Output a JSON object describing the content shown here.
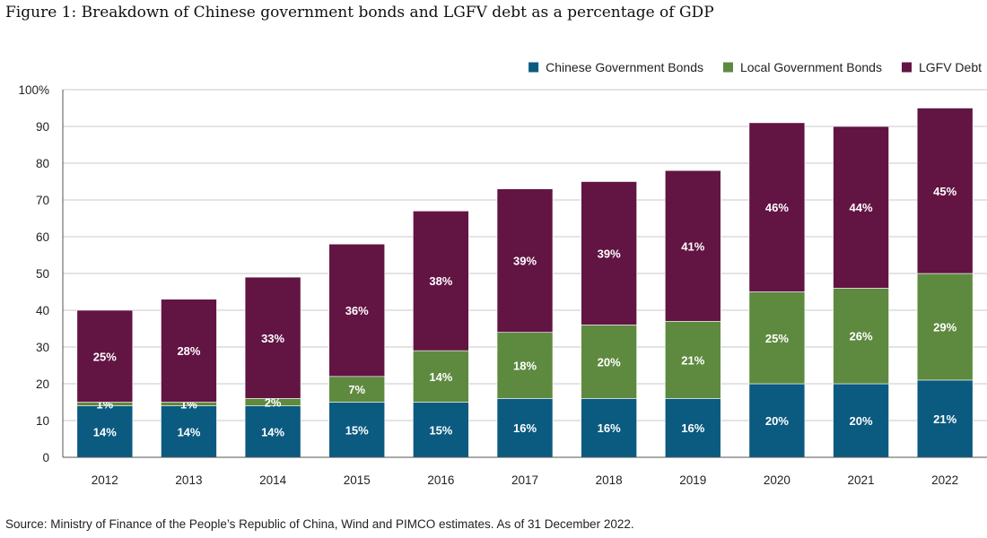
{
  "title": "Figure 1: Breakdown of Chinese government bonds and LGFV debt as a percentage of GDP",
  "source": "Source: Ministry of Finance of the People’s Republic of China, Wind and PIMCO estimates. As of 31 December 2022.",
  "chart_data": {
    "type": "bar",
    "stacked": true,
    "categories": [
      "2012",
      "2013",
      "2014",
      "2015",
      "2016",
      "2017",
      "2018",
      "2019",
      "2020",
      "2021",
      "2022"
    ],
    "series": [
      {
        "name": "Chinese Government Bonds",
        "color": "#0b5a80",
        "values": [
          14,
          14,
          14,
          15,
          15,
          16,
          16,
          16,
          20,
          20,
          21
        ],
        "labels": [
          "14%",
          "14%",
          "14%",
          "15%",
          "15%",
          "16%",
          "16%",
          "16%",
          "20%",
          "20%",
          "21%"
        ]
      },
      {
        "name": "Local Government Bonds",
        "color": "#5e8a40",
        "values": [
          1,
          1,
          2,
          7,
          14,
          18,
          20,
          21,
          25,
          26,
          29
        ],
        "labels": [
          "1%",
          "1%",
          "2%",
          "7%",
          "14%",
          "18%",
          "20%",
          "21%",
          "25%",
          "26%",
          "29%"
        ]
      },
      {
        "name": "LGFV Debt",
        "color": "#621443",
        "values": [
          25,
          28,
          33,
          36,
          38,
          39,
          39,
          41,
          46,
          44,
          45
        ],
        "labels": [
          "25%",
          "28%",
          "33%",
          "36%",
          "38%",
          "39%",
          "39%",
          "41%",
          "46%",
          "44%",
          "45%"
        ]
      }
    ],
    "ylim": [
      0,
      100
    ],
    "yticks": [
      "0",
      "10",
      "20",
      "30",
      "40",
      "50",
      "60",
      "70",
      "80",
      "90",
      "100%"
    ],
    "ytick_values": [
      0,
      10,
      20,
      30,
      40,
      50,
      60,
      70,
      80,
      90,
      100
    ],
    "grid": true,
    "legend": "top-right"
  }
}
